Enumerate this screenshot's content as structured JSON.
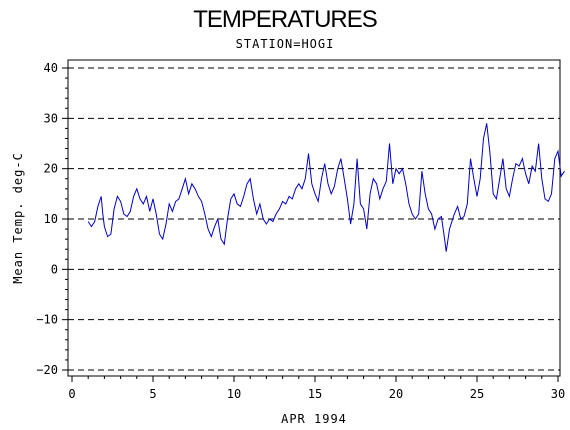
{
  "chart_data": {
    "type": "line",
    "title": "TEMPERATURES",
    "subtitle": "STATION=HOGI",
    "xlabel": "APR 1994",
    "ylabel": "Mean Temp. deg-C",
    "xlim": [
      0,
      30
    ],
    "ylim": [
      -20,
      40
    ],
    "x_ticks": [
      0,
      5,
      10,
      15,
      20,
      25,
      30
    ],
    "y_ticks": [
      -20,
      -10,
      0,
      10,
      20,
      30,
      40
    ],
    "grid": "horizontal-dashed",
    "series": [
      {
        "color": "#0000cc",
        "points": [
          [
            1.0,
            9.5
          ],
          [
            1.2,
            8.5
          ],
          [
            1.4,
            9.5
          ],
          [
            1.6,
            12.5
          ],
          [
            1.8,
            14.5
          ],
          [
            1.9,
            11.0
          ],
          [
            2.0,
            8.5
          ],
          [
            2.2,
            6.5
          ],
          [
            2.4,
            7.0
          ],
          [
            2.6,
            12.0
          ],
          [
            2.8,
            14.5
          ],
          [
            3.0,
            13.5
          ],
          [
            3.2,
            11.0
          ],
          [
            3.4,
            10.5
          ],
          [
            3.6,
            11.5
          ],
          [
            3.8,
            14.5
          ],
          [
            4.0,
            16.0
          ],
          [
            4.2,
            14.0
          ],
          [
            4.4,
            13.0
          ],
          [
            4.6,
            14.5
          ],
          [
            4.8,
            11.5
          ],
          [
            5.0,
            14.0
          ],
          [
            5.2,
            11.0
          ],
          [
            5.4,
            7.0
          ],
          [
            5.6,
            6.0
          ],
          [
            5.8,
            9.0
          ],
          [
            6.0,
            13.0
          ],
          [
            6.2,
            11.5
          ],
          [
            6.4,
            13.5
          ],
          [
            6.6,
            14.0
          ],
          [
            6.8,
            16.0
          ],
          [
            7.0,
            18.0
          ],
          [
            7.2,
            15.0
          ],
          [
            7.4,
            17.0
          ],
          [
            7.6,
            16.0
          ],
          [
            7.8,
            14.5
          ],
          [
            8.0,
            13.5
          ],
          [
            8.2,
            11.0
          ],
          [
            8.4,
            8.0
          ],
          [
            8.6,
            6.5
          ],
          [
            8.8,
            8.5
          ],
          [
            9.0,
            10.0
          ],
          [
            9.2,
            6.0
          ],
          [
            9.4,
            5.0
          ],
          [
            9.6,
            10.0
          ],
          [
            9.8,
            14.0
          ],
          [
            10.0,
            15.0
          ],
          [
            10.2,
            13.0
          ],
          [
            10.4,
            12.5
          ],
          [
            10.6,
            14.5
          ],
          [
            10.8,
            17.0
          ],
          [
            11.0,
            18.0
          ],
          [
            11.2,
            14.0
          ],
          [
            11.4,
            11.0
          ],
          [
            11.6,
            13.0
          ],
          [
            11.8,
            10.0
          ],
          [
            12.0,
            9.0
          ],
          [
            12.2,
            10.0
          ],
          [
            12.4,
            9.5
          ],
          [
            12.6,
            11.0
          ],
          [
            12.8,
            12.0
          ],
          [
            13.0,
            13.5
          ],
          [
            13.2,
            13.0
          ],
          [
            13.4,
            14.5
          ],
          [
            13.6,
            14.0
          ],
          [
            13.8,
            16.0
          ],
          [
            14.0,
            17.0
          ],
          [
            14.2,
            16.0
          ],
          [
            14.4,
            18.0
          ],
          [
            14.6,
            23.0
          ],
          [
            14.8,
            17.0
          ],
          [
            15.0,
            15.0
          ],
          [
            15.2,
            13.5
          ],
          [
            15.4,
            18.0
          ],
          [
            15.6,
            21.0
          ],
          [
            15.8,
            17.0
          ],
          [
            16.0,
            15.0
          ],
          [
            16.2,
            16.5
          ],
          [
            16.4,
            20.0
          ],
          [
            16.6,
            22.0
          ],
          [
            16.8,
            18.0
          ],
          [
            17.0,
            14.0
          ],
          [
            17.2,
            9.0
          ],
          [
            17.4,
            13.0
          ],
          [
            17.6,
            22.0
          ],
          [
            17.8,
            13.0
          ],
          [
            18.0,
            12.0
          ],
          [
            18.2,
            8.0
          ],
          [
            18.4,
            15.0
          ],
          [
            18.6,
            18.0
          ],
          [
            18.8,
            17.0
          ],
          [
            19.0,
            14.0
          ],
          [
            19.2,
            16.0
          ],
          [
            19.4,
            17.5
          ],
          [
            19.6,
            25.0
          ],
          [
            19.8,
            17.0
          ],
          [
            20.0,
            20.0
          ],
          [
            20.2,
            19.0
          ],
          [
            20.4,
            20.0
          ],
          [
            20.6,
            17.0
          ],
          [
            20.8,
            13.0
          ],
          [
            21.0,
            11.0
          ],
          [
            21.2,
            10.0
          ],
          [
            21.4,
            11.0
          ],
          [
            21.6,
            19.5
          ],
          [
            21.8,
            15.0
          ],
          [
            22.0,
            12.0
          ],
          [
            22.2,
            11.0
          ],
          [
            22.4,
            8.0
          ],
          [
            22.6,
            10.0
          ],
          [
            22.8,
            10.5
          ],
          [
            23.0,
            6.0
          ],
          [
            23.1,
            3.5
          ],
          [
            23.3,
            8.0
          ],
          [
            23.6,
            11.0
          ],
          [
            23.8,
            12.5
          ],
          [
            24.0,
            10.0
          ],
          [
            24.2,
            10.5
          ],
          [
            24.4,
            13.0
          ],
          [
            24.6,
            22.0
          ],
          [
            24.8,
            18.0
          ],
          [
            25.0,
            14.5
          ],
          [
            25.2,
            18.0
          ],
          [
            25.4,
            26.0
          ],
          [
            25.6,
            29.0
          ],
          [
            25.8,
            23.0
          ],
          [
            26.0,
            15.0
          ],
          [
            26.2,
            14.0
          ],
          [
            26.4,
            18.0
          ],
          [
            26.6,
            22.0
          ],
          [
            26.8,
            16.0
          ],
          [
            27.0,
            14.5
          ],
          [
            27.2,
            18.0
          ],
          [
            27.4,
            21.0
          ],
          [
            27.6,
            20.5
          ],
          [
            27.8,
            22.0
          ],
          [
            28.0,
            19.0
          ],
          [
            28.2,
            17.0
          ],
          [
            28.4,
            20.5
          ],
          [
            28.6,
            19.5
          ],
          [
            28.8,
            25.0
          ],
          [
            29.0,
            18.0
          ],
          [
            29.2,
            14.0
          ],
          [
            29.4,
            13.5
          ],
          [
            29.6,
            15.0
          ],
          [
            29.8,
            22.0
          ],
          [
            30.0,
            23.5
          ],
          [
            30.2,
            18.5
          ],
          [
            30.4,
            19.5
          ]
        ]
      }
    ]
  }
}
